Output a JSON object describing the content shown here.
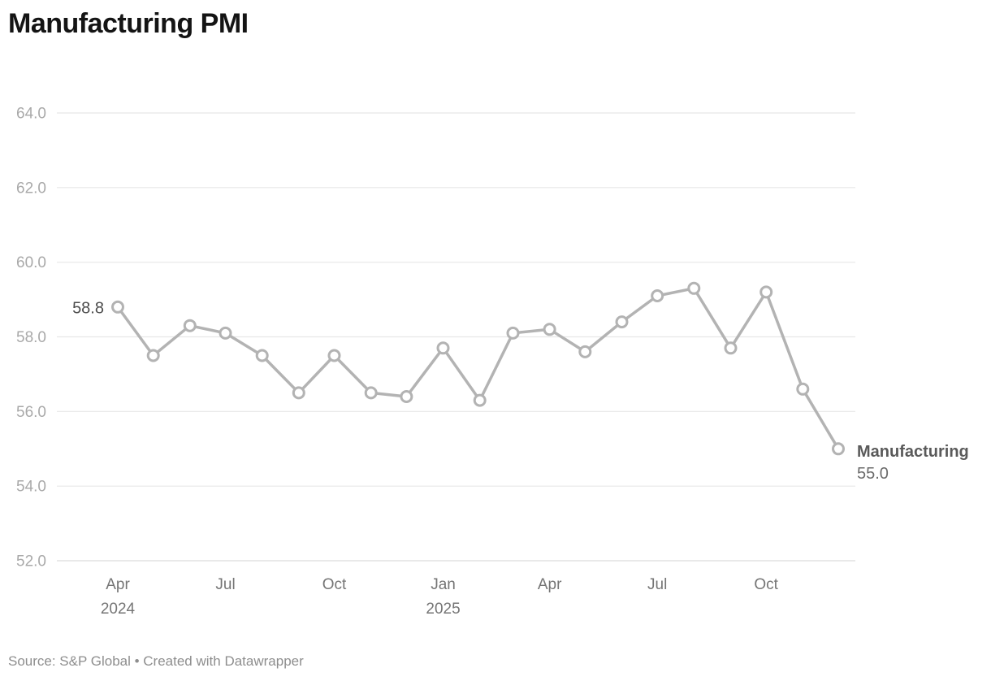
{
  "header": {
    "title": "Manufacturing PMI"
  },
  "footer": {
    "text": "Source: S&P Global • Created with Datawrapper"
  },
  "colors": {
    "background": "#ffffff",
    "title": "#141414",
    "grid": "#e7e7e7",
    "baseline": "#dcdcdc",
    "axis_y_label": "#a9a9a9",
    "axis_x_label": "#757575",
    "line": "#b3b3b3",
    "marker_fill": "#ffffff",
    "value_label": "#4c4c4c",
    "end_label_name": "#5a5a5a",
    "end_label_value": "#6b6b6b",
    "footer": "#8e8e8e"
  },
  "chart_data": {
    "type": "line",
    "title": "Manufacturing PMI",
    "source": "Source: S&P Global • Created with Datawrapper",
    "x": [
      "2024-04",
      "2024-05",
      "2024-06",
      "2024-07",
      "2024-08",
      "2024-09",
      "2024-10",
      "2024-11",
      "2024-12",
      "2025-01",
      "2025-02",
      "2025-03",
      "2025-04",
      "2025-05",
      "2025-06",
      "2025-07",
      "2025-08",
      "2025-09",
      "2025-10",
      "2025-11",
      "2025-12"
    ],
    "series": [
      {
        "name": "Manufacturing",
        "values": [
          58.8,
          57.5,
          58.3,
          58.1,
          57.5,
          56.5,
          57.5,
          56.5,
          56.4,
          57.7,
          56.3,
          58.1,
          58.2,
          57.6,
          58.4,
          59.1,
          59.3,
          57.7,
          59.2,
          56.6,
          55.0
        ]
      }
    ],
    "ylim": [
      52,
      64
    ],
    "grid": "horizontal",
    "legend_position": "end-of-line",
    "y_ticks": [
      {
        "value": 52,
        "label": "52.0"
      },
      {
        "value": 54,
        "label": "54.0"
      },
      {
        "value": 56,
        "label": "56.0"
      },
      {
        "value": 58,
        "label": "58.0"
      },
      {
        "value": 60,
        "label": "60.0"
      },
      {
        "value": 62,
        "label": "62.0"
      },
      {
        "value": 64,
        "label": "64.0"
      }
    ],
    "x_ticks": [
      {
        "x": "2024-04",
        "line1": "Apr",
        "line2": "2024"
      },
      {
        "x": "2024-07",
        "line1": "Jul",
        "line2": ""
      },
      {
        "x": "2024-10",
        "line1": "Oct",
        "line2": ""
      },
      {
        "x": "2025-01",
        "line1": "Jan",
        "line2": "2025"
      },
      {
        "x": "2025-04",
        "line1": "Apr",
        "line2": ""
      },
      {
        "x": "2025-07",
        "line1": "Jul",
        "line2": ""
      },
      {
        "x": "2025-10",
        "line1": "Oct",
        "line2": ""
      }
    ],
    "first_value_label": "58.8",
    "end_labels": {
      "name": "Manufacturing",
      "value": "55.0"
    }
  }
}
